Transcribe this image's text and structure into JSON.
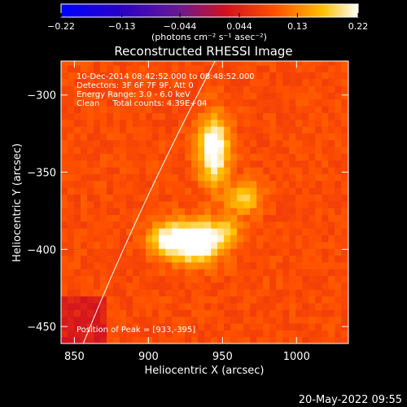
{
  "colorbar": {
    "ticks": [
      -0.22,
      -0.13,
      -0.044,
      0.044,
      0.13,
      0.22
    ],
    "tick_labels": [
      "-0.22",
      "-0.13",
      "-0.044",
      "0.044",
      "0.13",
      "0.22"
    ],
    "unit_label": "(photons cm⁻² s⁻¹ asec⁻²)",
    "range": [
      -0.22,
      0.22
    ]
  },
  "chart_data": {
    "type": "heatmap",
    "title": "Reconstructed RHESSI Image",
    "xlabel": "Heliocentric X (arcsec)",
    "ylabel": "Heliocentric Y (arcsec)",
    "xlim": [
      841,
      1035
    ],
    "ylim": [
      -461,
      -278
    ],
    "x_ticks": [
      850,
      900,
      950,
      1000
    ],
    "y_ticks": [
      -300,
      -350,
      -400,
      -450
    ],
    "annotations": [
      "10-Dec-2014 08:42:52.000 to 08:48:52.000",
      "Detectors: 3F 6F 7F 9F, Att 0",
      "Energy Range: 3.0 - 6.0 keV",
      "Clean     Total counts: 4.39E+04"
    ],
    "peak_label": "Position of Peak = [933,-395]",
    "peak": [
      933,
      -395
    ],
    "limb_line": [
      [
        856,
        -461
      ],
      [
        945,
        -278
      ]
    ],
    "sources": [
      {
        "x": 933,
        "y": -395,
        "peak": 0.22,
        "sigma_x": 11,
        "sigma_y": 9
      },
      {
        "x": 944,
        "y": -335,
        "peak": 0.19,
        "sigma_x": 7,
        "sigma_y": 15
      },
      {
        "x": 912,
        "y": -393,
        "peak": 0.14,
        "sigma_x": 9,
        "sigma_y": 8
      },
      {
        "x": 965,
        "y": -366,
        "peak": 0.12,
        "sigma_x": 8,
        "sigma_y": 7
      },
      {
        "x": 953,
        "y": -387,
        "peak": 0.09,
        "sigma_x": 7,
        "sigma_y": 7
      }
    ],
    "background_level": 0.09,
    "colors": {
      "low": "#0000ff",
      "mid": "#ff1a00",
      "high": "#ffffff",
      "background": "#000000"
    }
  },
  "footer": {
    "timestamp": "20-May-2022 09:55"
  }
}
